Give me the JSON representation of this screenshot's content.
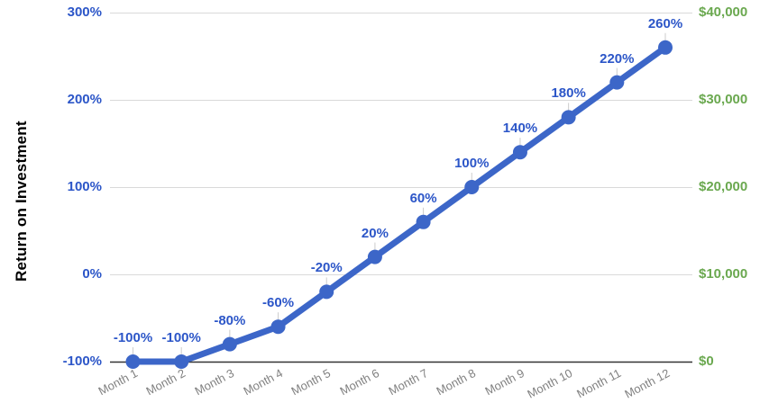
{
  "chart": {
    "y_axis_title": "Return on Investment"
  },
  "chart_data": {
    "type": "line",
    "title": "",
    "xlabel": "",
    "ylabel": "Return on Investment",
    "categories": [
      "Month 1",
      "Month 2",
      "Month 3",
      "Month 4",
      "Month 5",
      "Month 6",
      "Month 7",
      "Month 8",
      "Month 9",
      "Month 10",
      "Month 11",
      "Month 12"
    ],
    "series": [
      {
        "name": "Return on Investment",
        "values": [
          -100,
          -100,
          -80,
          -60,
          -20,
          20,
          60,
          100,
          140,
          180,
          220,
          260
        ]
      }
    ],
    "point_labels": [
      "-100%",
      "-100%",
      "-80%",
      "-60%",
      "-20%",
      "20%",
      "60%",
      "100%",
      "140%",
      "180%",
      "220%",
      "260%"
    ],
    "left_axis": {
      "ticks": [
        "300%",
        "200%",
        "100%",
        "0%",
        "-100%"
      ],
      "min": -100,
      "max": 300
    },
    "right_axis": {
      "ticks": [
        "$40,000",
        "$30,000",
        "$20,000",
        "$10,000",
        "$0"
      ],
      "min": 0,
      "max": 40000
    },
    "grid": true,
    "legend": "none",
    "colors": {
      "line": "#3C66C8",
      "point": "#3C66C8",
      "data_label": "#2C56C8",
      "left_tick": "#2C56C8",
      "right_tick": "#6AA84F",
      "x_tick": "#808080",
      "gridline": "#D9D9D9",
      "baseline": "#333333",
      "leader": "#CCCCCC",
      "background": "#FFFFFF"
    }
  }
}
